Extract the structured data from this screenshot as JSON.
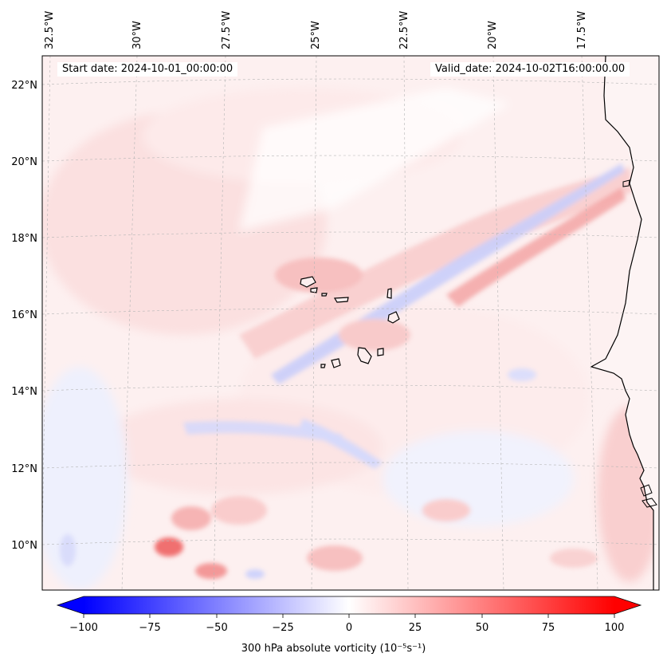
{
  "header": {
    "start_date": "Start date: 2024-10-01_00:00:00",
    "valid_date": "Valid_date: 2024-10-02T16:00:00.00"
  },
  "map": {
    "longitude_labels": [
      "32.5°W",
      "30°W",
      "27.5°W",
      "25°W",
      "22.5°W",
      "20°W",
      "17.5°W"
    ],
    "latitude_labels": [
      "22°N",
      "20°N",
      "18°N",
      "16°N",
      "14°N",
      "12°N",
      "10°N"
    ],
    "field": "300 hPa absolute vorticity",
    "colormap": "bwr",
    "colors": {
      "negative": "#0000ff",
      "zero": "#ffffff",
      "positive": "#ff0000",
      "coastline": "#000000"
    }
  },
  "colorbar": {
    "label": "300 hPa absolute vorticity (10⁻⁵s⁻¹)",
    "ticks": [
      "−100",
      "−75",
      "−50",
      "−25",
      "0",
      "25",
      "50",
      "75",
      "100"
    ],
    "range": [
      -100,
      100
    ]
  }
}
